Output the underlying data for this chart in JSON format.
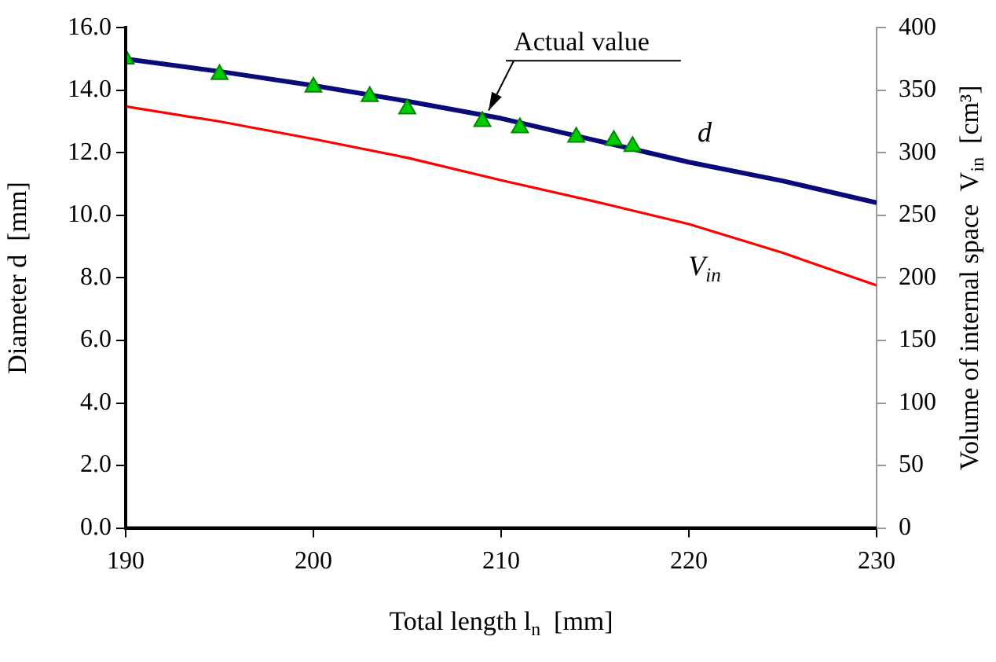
{
  "chart_data": {
    "type": "line",
    "xlabel": "Total length l$_{n}$  [mm]",
    "ylabel": "Diameter d  [mm]",
    "y2label": "Volume of internal space  V$_{in}$  [cm³]",
    "xlim": [
      190,
      230
    ],
    "xticks": [
      190,
      200,
      210,
      220,
      230
    ],
    "ylim": [
      0,
      16
    ],
    "yticks": [
      {
        "value": 0,
        "label": "0.0"
      },
      {
        "value": 2,
        "label": "2.0"
      },
      {
        "value": 4,
        "label": "4.0"
      },
      {
        "value": 6,
        "label": "6.0"
      },
      {
        "value": 8,
        "label": "8.0"
      },
      {
        "value": 10,
        "label": "10.0"
      },
      {
        "value": 12,
        "label": "12.0"
      },
      {
        "value": 14,
        "label": "14.0"
      },
      {
        "value": 16,
        "label": "16.0"
      }
    ],
    "y2lim": [
      0,
      400
    ],
    "y2ticks": [
      0,
      50,
      100,
      150,
      200,
      250,
      300,
      350,
      400
    ],
    "grid": false,
    "legend": false,
    "series": [
      {
        "name": "d",
        "color": "#0a0a7a",
        "x": [
          190,
          195,
          200,
          205,
          210,
          215,
          220,
          225,
          230
        ],
        "values": [
          15.0,
          14.6,
          14.15,
          13.65,
          13.1,
          12.4,
          11.7,
          11.1,
          10.4
        ]
      },
      {
        "type": "line",
        "name": "V$_{in}$",
        "axis": "y2",
        "color": "#ff0000",
        "x": [
          190,
          195,
          200,
          205,
          210,
          215,
          220,
          225,
          230
        ],
        "values": [
          337,
          325,
          311,
          296,
          278,
          261,
          243,
          220,
          194
        ]
      },
      {
        "type": "scatter",
        "marker": "triangle",
        "color": "#00cc00",
        "x": [
          190,
          195,
          200,
          203,
          205,
          209,
          211,
          214,
          216,
          217
        ],
        "values": [
          15.0,
          14.5,
          14.1,
          13.8,
          13.4,
          13.0,
          12.8,
          12.5,
          12.4,
          12.2
        ]
      }
    ],
    "annotations": [
      {
        "text": "Actual value",
        "x": 209,
        "y": 13.0
      }
    ]
  }
}
